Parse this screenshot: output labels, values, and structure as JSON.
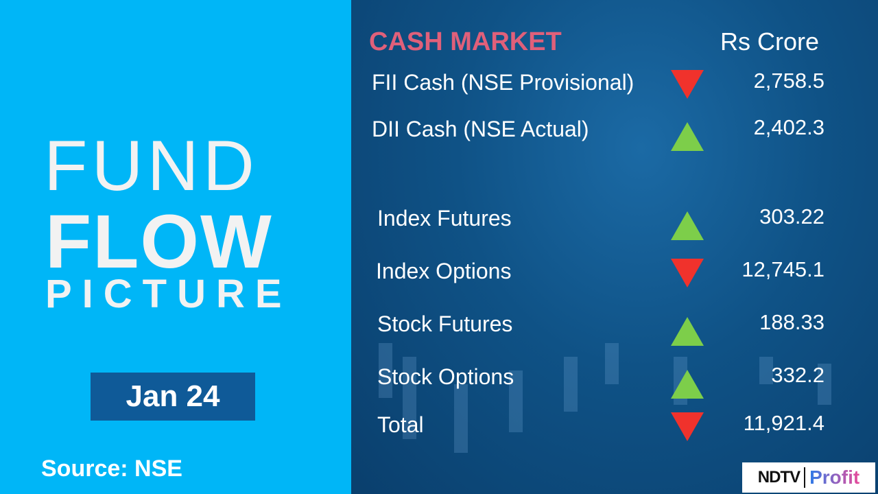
{
  "left": {
    "line1": "FUND",
    "line2": "FLOW",
    "line3": "PICTURE",
    "date": "Jan 24",
    "source": "Source: NSE"
  },
  "header": {
    "title": "CASH MARKET",
    "unit": "Rs Crore"
  },
  "colors": {
    "up": "#7dce4a",
    "down": "#f0322c",
    "title": "#e0607a",
    "left_bg": "#00b6f7"
  },
  "rows": [
    {
      "label": "FII Cash (NSE Provisional)",
      "direction": "down",
      "value": "2,758.5"
    },
    {
      "label": "DII Cash (NSE Actual)",
      "direction": "up",
      "value": "2,402.3"
    },
    {
      "label": "Index Futures",
      "direction": "up",
      "value": "303.22"
    },
    {
      "label": "Index Options",
      "direction": "down",
      "value": "12,745.1"
    },
    {
      "label": "Stock Futures",
      "direction": "up",
      "value": "188.33"
    },
    {
      "label": "Stock Options",
      "direction": "up",
      "value": "332.2"
    },
    {
      "label": "Total",
      "direction": "down",
      "value": "11,921.4"
    }
  ],
  "logo": {
    "brand": "NDTV",
    "product": "Profit"
  }
}
